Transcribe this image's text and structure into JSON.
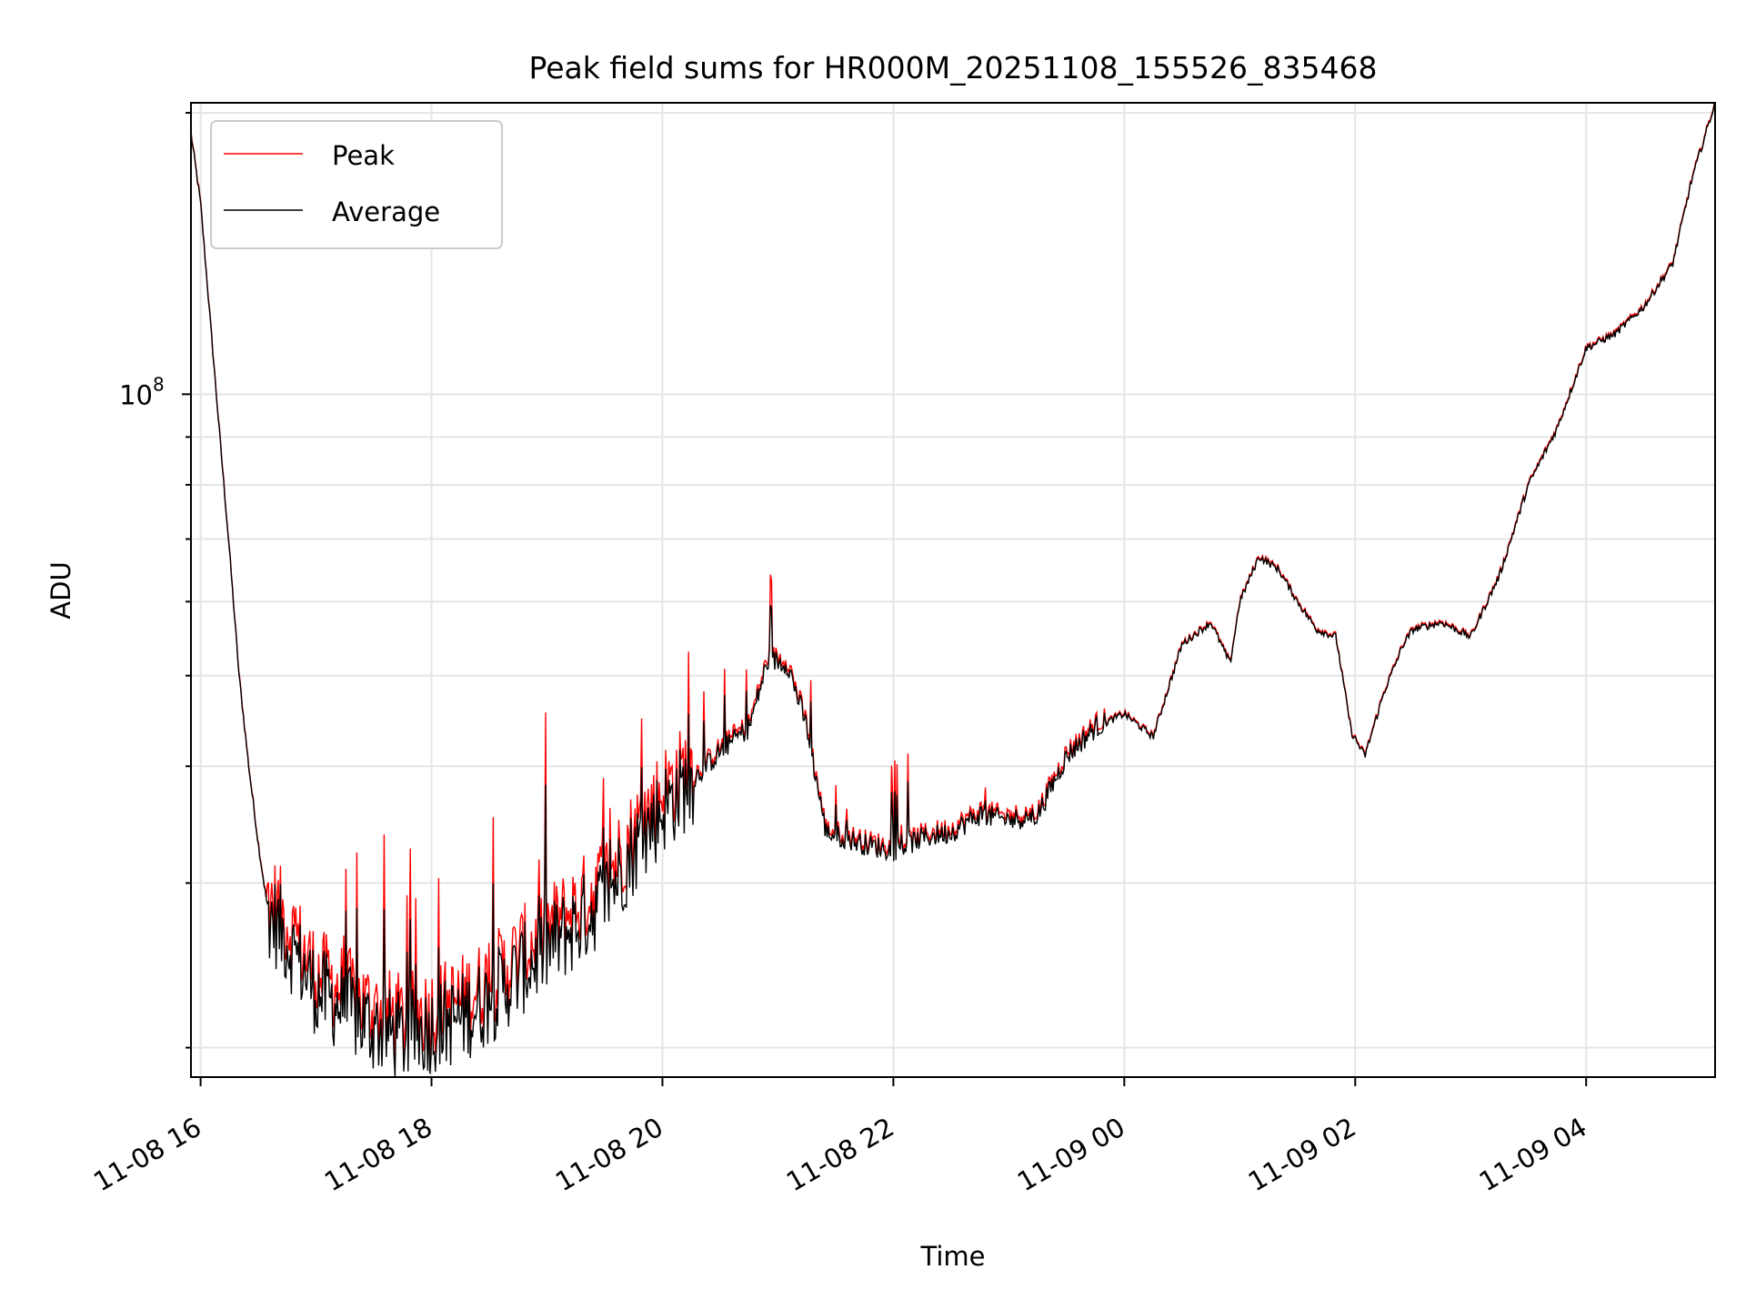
{
  "chart_data": {
    "type": "line",
    "title": "Peak field sums for HR000M_20251108_155526_835468",
    "xlabel": "Time",
    "ylabel": "ADU",
    "y_scale": "log",
    "grid": true,
    "legend_position": "top-left",
    "x_range": [
      "2025-11-08 15:55",
      "2025-11-09 05:07"
    ],
    "y_range": [
      18600000,
      205000000
    ],
    "x_ticks": [
      {
        "label": "11-08 16",
        "t": "2025-11-08 16:00"
      },
      {
        "label": "11-08 18",
        "t": "2025-11-08 18:00"
      },
      {
        "label": "11-08 20",
        "t": "2025-11-08 20:00"
      },
      {
        "label": "11-08 22",
        "t": "2025-11-08 22:00"
      },
      {
        "label": "11-09 00",
        "t": "2025-11-09 00:00"
      },
      {
        "label": "11-09 02",
        "t": "2025-11-09 02:00"
      },
      {
        "label": "11-09 04",
        "t": "2025-11-09 04:00"
      }
    ],
    "y_major_ticks": [
      {
        "base": "10",
        "exp": "8",
        "value": 100000000
      }
    ],
    "y_minor_ticks": [
      20000000,
      30000000,
      40000000,
      50000000,
      60000000,
      70000000,
      80000000,
      90000000,
      200000000
    ],
    "series": [
      {
        "name": "Average",
        "color": "#000000",
        "points": [
          [
            "2025-11-08 15:55",
            190000000
          ],
          [
            "2025-11-08 16:00",
            160000000
          ],
          [
            "2025-11-08 16:05",
            120000000
          ],
          [
            "2025-11-08 16:10",
            90000000
          ],
          [
            "2025-11-08 16:15",
            68000000
          ],
          [
            "2025-11-08 16:20",
            50000000
          ],
          [
            "2025-11-08 16:25",
            40000000
          ],
          [
            "2025-11-08 16:30",
            33000000
          ],
          [
            "2025-11-08 16:35",
            28000000
          ],
          [
            "2025-11-08 16:45",
            26000000
          ],
          [
            "2025-11-08 17:00",
            23000000
          ],
          [
            "2025-11-08 17:15",
            22000000
          ],
          [
            "2025-11-08 17:30",
            21000000
          ],
          [
            "2025-11-08 17:45",
            20500000
          ],
          [
            "2025-11-08 18:00",
            21000000
          ],
          [
            "2025-11-08 18:15",
            21500000
          ],
          [
            "2025-11-08 18:30",
            22500000
          ],
          [
            "2025-11-08 18:45",
            24000000
          ],
          [
            "2025-11-08 19:00",
            25500000
          ],
          [
            "2025-11-08 19:15",
            27000000
          ],
          [
            "2025-11-08 19:30",
            29000000
          ],
          [
            "2025-11-08 19:45",
            32500000
          ],
          [
            "2025-11-08 20:00",
            36000000
          ],
          [
            "2025-11-08 20:15",
            38500000
          ],
          [
            "2025-11-08 20:30",
            41500000
          ],
          [
            "2025-11-08 20:45",
            44000000
          ],
          [
            "2025-11-08 20:55",
            52000000
          ],
          [
            "2025-11-08 21:05",
            51500000
          ],
          [
            "2025-11-08 21:15",
            44000000
          ],
          [
            "2025-11-08 21:25",
            34000000
          ],
          [
            "2025-11-08 21:45",
            33000000
          ],
          [
            "2025-11-08 22:00",
            32500000
          ],
          [
            "2025-11-08 22:15",
            33500000
          ],
          [
            "2025-11-08 22:30",
            34000000
          ],
          [
            "2025-11-08 22:45",
            35500000
          ],
          [
            "2025-11-08 23:00",
            35000000
          ],
          [
            "2025-11-08 23:15",
            35500000
          ],
          [
            "2025-11-08 23:30",
            41000000
          ],
          [
            "2025-11-08 23:45",
            44000000
          ],
          [
            "2025-11-09 00:00",
            45500000
          ],
          [
            "2025-11-09 00:15",
            43000000
          ],
          [
            "2025-11-09 00:30",
            54000000
          ],
          [
            "2025-11-09 00:45",
            57000000
          ],
          [
            "2025-11-09 00:55",
            51500000
          ],
          [
            "2025-11-09 01:00",
            60000000
          ],
          [
            "2025-11-09 01:10",
            67000000
          ],
          [
            "2025-11-09 01:20",
            65000000
          ],
          [
            "2025-11-09 01:30",
            60000000
          ],
          [
            "2025-11-09 01:40",
            56000000
          ],
          [
            "2025-11-09 01:50",
            55000000
          ],
          [
            "2025-11-09 01:58",
            43500000
          ],
          [
            "2025-11-09 02:05",
            41000000
          ],
          [
            "2025-11-09 02:15",
            48000000
          ],
          [
            "2025-11-09 02:25",
            54000000
          ],
          [
            "2025-11-09 02:30",
            56000000
          ],
          [
            "2025-11-09 02:45",
            57000000
          ],
          [
            "2025-11-09 03:00",
            55000000
          ],
          [
            "2025-11-09 03:15",
            64000000
          ],
          [
            "2025-11-09 03:30",
            80000000
          ],
          [
            "2025-11-09 03:45",
            92000000
          ],
          [
            "2025-11-09 04:00",
            112000000
          ],
          [
            "2025-11-09 04:15",
            116000000
          ],
          [
            "2025-11-09 04:30",
            124000000
          ],
          [
            "2025-11-09 04:45",
            138000000
          ],
          [
            "2025-11-09 04:55",
            170000000
          ],
          [
            "2025-11-09 05:07",
            205000000
          ]
        ]
      },
      {
        "name": "Peak",
        "color": "#ff0000",
        "same_as": "Average",
        "note_only_visible_on_spikes": true
      }
    ]
  }
}
